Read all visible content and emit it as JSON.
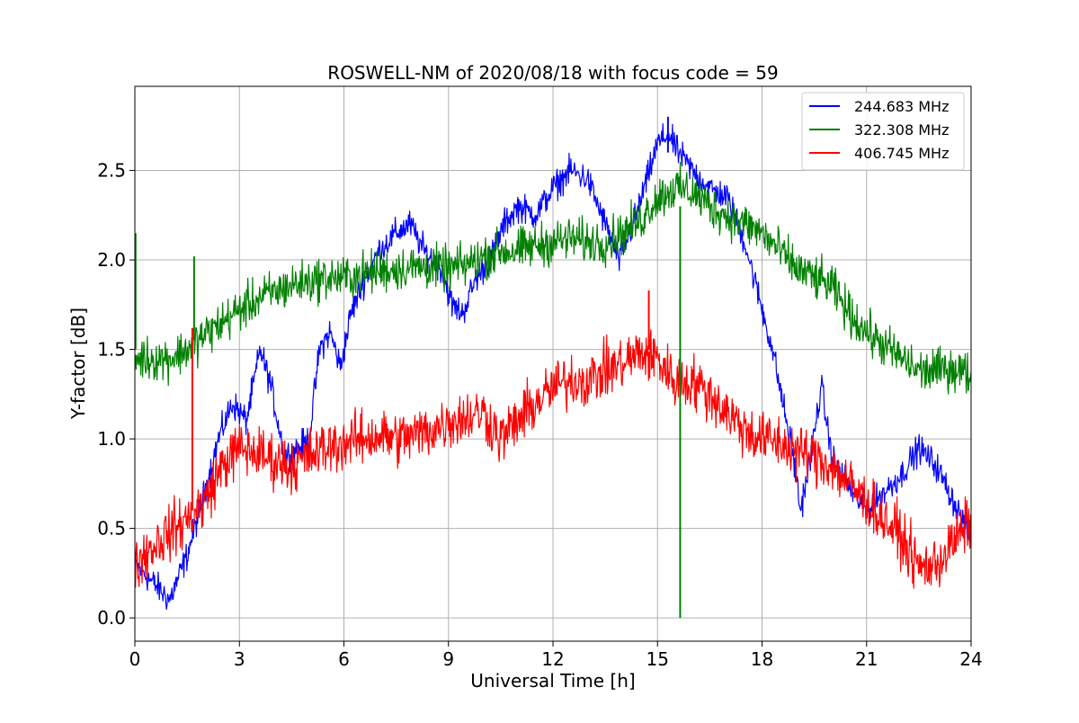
{
  "chart_data": {
    "type": "line",
    "title": "ROSWELL-NM of 2020/08/18 with focus code = 59",
    "xlabel": "Universal Time [h]",
    "ylabel": "Y-factor [dB]",
    "xlim": [
      0,
      24
    ],
    "ylim": [
      -0.13,
      2.97
    ],
    "xticks": [
      0,
      3,
      6,
      9,
      12,
      15,
      18,
      21,
      24
    ],
    "yticks": [
      0.0,
      0.5,
      1.0,
      1.5,
      2.0,
      2.5
    ],
    "xtick_labels": [
      "0",
      "3",
      "6",
      "9",
      "12",
      "15",
      "18",
      "21",
      "24"
    ],
    "ytick_labels": [
      "0.0",
      "0.5",
      "1.0",
      "1.5",
      "2.0",
      "2.5"
    ],
    "grid": true,
    "legend_position": "top-right",
    "series": [
      {
        "name": "244.683 MHz",
        "color": "#0000ff",
        "noise": 0.08,
        "x": [
          0,
          0.5,
          1.0,
          1.5,
          2.0,
          2.4,
          2.8,
          3.2,
          3.6,
          3.9,
          4.3,
          4.7,
          5.0,
          5.3,
          5.6,
          5.9,
          6.2,
          6.5,
          7.0,
          7.5,
          7.9,
          8.3,
          8.8,
          9.1,
          9.4,
          9.8,
          10.2,
          10.6,
          11.0,
          11.5,
          12.0,
          12.5,
          13.0,
          13.5,
          13.9,
          14.3,
          14.7,
          15.0,
          15.3,
          15.6,
          16.0,
          16.5,
          17.0,
          17.5,
          17.9,
          18.3,
          18.6,
          18.9,
          19.1,
          19.4,
          19.7,
          20.0,
          20.3,
          20.6,
          21.0,
          21.5,
          22.0,
          22.5,
          23.0,
          23.5,
          24.0
        ],
        "y": [
          0.3,
          0.2,
          0.1,
          0.35,
          0.7,
          1.0,
          1.2,
          1.1,
          1.5,
          1.3,
          0.9,
          0.95,
          1.0,
          1.5,
          1.6,
          1.4,
          1.7,
          1.85,
          2.05,
          2.15,
          2.2,
          2.05,
          1.95,
          1.75,
          1.7,
          1.9,
          2.0,
          2.2,
          2.3,
          2.25,
          2.4,
          2.5,
          2.45,
          2.2,
          2.0,
          2.2,
          2.45,
          2.65,
          2.7,
          2.6,
          2.5,
          2.4,
          2.35,
          2.1,
          1.8,
          1.5,
          1.2,
          0.9,
          0.6,
          0.9,
          1.3,
          0.9,
          0.8,
          0.7,
          0.6,
          0.7,
          0.8,
          0.95,
          0.85,
          0.65,
          0.45
        ]
      },
      {
        "name": "322.308 MHz",
        "color": "#008000",
        "noise": 0.12,
        "x": [
          0,
          0.5,
          1.0,
          1.5,
          2.0,
          2.5,
          3.0,
          3.5,
          4.0,
          4.5,
          5.0,
          5.5,
          6.0,
          6.5,
          7.0,
          7.5,
          8.0,
          8.5,
          9.0,
          9.5,
          10.0,
          10.5,
          11.0,
          11.5,
          12.0,
          12.5,
          13.0,
          13.5,
          14.0,
          14.5,
          15.0,
          15.5,
          16.0,
          16.5,
          17.0,
          17.5,
          18.0,
          18.5,
          19.0,
          19.5,
          20.0,
          20.5,
          21.0,
          21.5,
          22.0,
          22.5,
          23.0,
          23.5,
          24.0
        ],
        "y": [
          1.45,
          1.45,
          1.45,
          1.5,
          1.58,
          1.65,
          1.72,
          1.78,
          1.82,
          1.86,
          1.88,
          1.9,
          1.9,
          1.92,
          1.94,
          1.95,
          1.96,
          1.96,
          1.95,
          1.97,
          2.02,
          2.05,
          2.05,
          2.08,
          2.1,
          2.12,
          2.1,
          2.1,
          2.15,
          2.22,
          2.35,
          2.4,
          2.38,
          2.3,
          2.25,
          2.2,
          2.15,
          2.05,
          1.95,
          1.9,
          1.85,
          1.7,
          1.6,
          1.52,
          1.45,
          1.38,
          1.38,
          1.4,
          1.35
        ]
      },
      {
        "name": "406.745 MHz",
        "color": "#ff0000",
        "noise": 0.15,
        "x": [
          0,
          0.5,
          1.0,
          1.5,
          2.0,
          2.5,
          3.0,
          3.5,
          4.0,
          4.5,
          5.0,
          5.5,
          6.0,
          6.5,
          7.0,
          7.5,
          8.0,
          8.5,
          9.0,
          9.5,
          10.0,
          10.5,
          11.0,
          11.5,
          12.0,
          12.5,
          13.0,
          13.5,
          14.0,
          14.5,
          15.0,
          15.5,
          16.0,
          16.5,
          17.0,
          17.5,
          18.0,
          18.5,
          19.0,
          19.5,
          20.0,
          20.5,
          21.0,
          21.5,
          22.0,
          22.5,
          23.0,
          23.5,
          24.0
        ],
        "y": [
          0.3,
          0.4,
          0.48,
          0.55,
          0.65,
          0.85,
          0.95,
          0.92,
          0.88,
          0.85,
          0.9,
          0.95,
          0.98,
          1.0,
          1.02,
          1.0,
          1.02,
          1.05,
          1.1,
          1.12,
          1.15,
          1.0,
          1.1,
          1.2,
          1.28,
          1.33,
          1.33,
          1.38,
          1.42,
          1.48,
          1.45,
          1.32,
          1.32,
          1.25,
          1.15,
          1.05,
          1.0,
          0.98,
          0.93,
          0.9,
          0.85,
          0.75,
          0.65,
          0.55,
          0.45,
          0.28,
          0.3,
          0.42,
          0.55
        ]
      }
    ],
    "spikes": [
      {
        "series": 1,
        "x": 0.02,
        "from": 1.5,
        "to": 2.15
      },
      {
        "series": 1,
        "x": 1.7,
        "from": 1.55,
        "to": 2.02
      },
      {
        "series": 1,
        "x": 15.65,
        "from": 2.3,
        "to": 0.0
      },
      {
        "series": 2,
        "x": 1.65,
        "from": 0.6,
        "to": 1.62
      },
      {
        "series": 2,
        "x": 14.75,
        "from": 1.5,
        "to": 1.83
      },
      {
        "series": 0,
        "x": 15.3,
        "from": 2.6,
        "to": 2.8
      }
    ]
  }
}
